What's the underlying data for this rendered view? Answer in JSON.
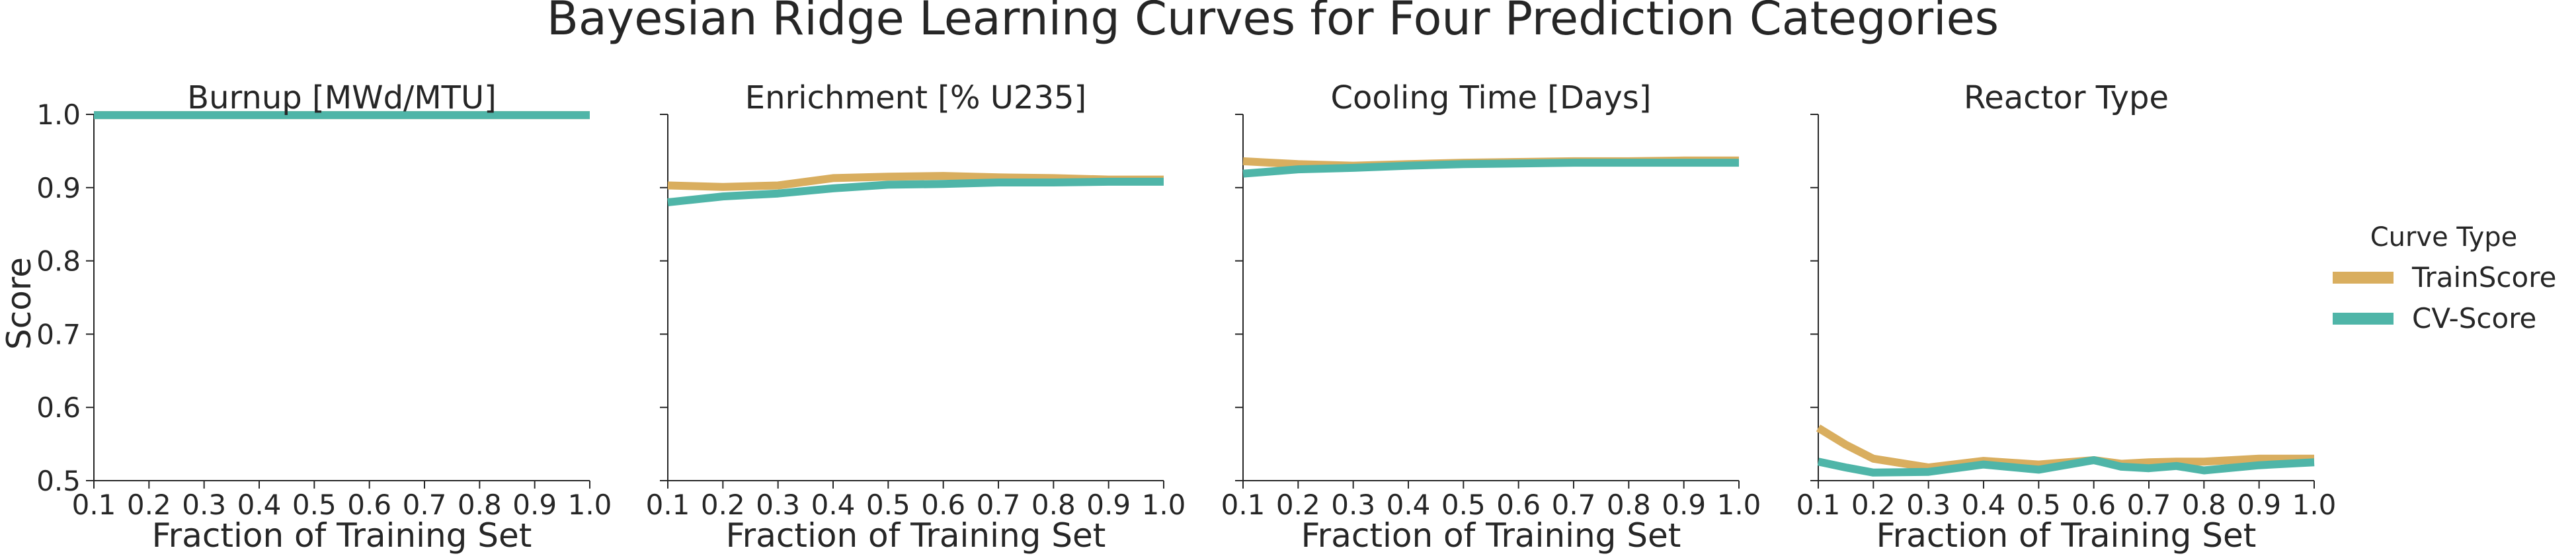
{
  "title": "Bayesian Ridge Learning Curves for Four Prediction Categories",
  "ylabel": "Score",
  "legend": {
    "title": "Curve Type",
    "placement": "right",
    "entries": [
      {
        "name": "TrainScore",
        "color": "#D9AE5F"
      },
      {
        "name": "CV-Score",
        "color": "#4FB5A8"
      }
    ]
  },
  "chart_data": [
    {
      "type": "line",
      "title": "Burnup [MWd/MTU]",
      "xlabel": "Fraction of Training Set",
      "ylabel": "Score",
      "xlim": [
        0.1,
        1.0
      ],
      "ylim": [
        0.5,
        1.0
      ],
      "xticks": [
        "0.1",
        "0.2",
        "0.3",
        "0.4",
        "0.5",
        "0.6",
        "0.7",
        "0.8",
        "0.9",
        "1.0"
      ],
      "yticks": [
        "0.5",
        "0.6",
        "0.7",
        "0.8",
        "0.9",
        "1.0"
      ],
      "x": [
        0.1,
        0.2,
        0.3,
        0.4,
        0.5,
        0.6,
        0.7,
        0.8,
        0.9,
        1.0
      ],
      "series": [
        {
          "name": "TrainScore",
          "values": [
            0.999,
            0.999,
            0.999,
            0.999,
            0.999,
            0.999,
            0.999,
            0.999,
            0.999,
            0.999
          ]
        },
        {
          "name": "CV-Score",
          "values": [
            0.999,
            0.999,
            0.999,
            0.999,
            0.999,
            0.999,
            0.999,
            0.999,
            0.999,
            0.999
          ]
        }
      ]
    },
    {
      "type": "line",
      "title": "Enrichment [% U235]",
      "xlabel": "Fraction of Training Set",
      "xlim": [
        0.1,
        1.0
      ],
      "ylim": [
        0.5,
        1.0
      ],
      "xticks": [
        "0.1",
        "0.2",
        "0.3",
        "0.4",
        "0.5",
        "0.6",
        "0.7",
        "0.8",
        "0.9",
        "1.0"
      ],
      "x": [
        0.1,
        0.2,
        0.3,
        0.4,
        0.5,
        0.6,
        0.7,
        0.8,
        0.9,
        1.0
      ],
      "series": [
        {
          "name": "TrainScore",
          "values": [
            0.903,
            0.901,
            0.903,
            0.913,
            0.915,
            0.916,
            0.914,
            0.913,
            0.911,
            0.911
          ]
        },
        {
          "name": "CV-Score",
          "values": [
            0.88,
            0.888,
            0.892,
            0.899,
            0.904,
            0.905,
            0.907,
            0.907,
            0.908,
            0.908
          ]
        }
      ]
    },
    {
      "type": "line",
      "title": "Cooling Time [Days]",
      "xlabel": "Fraction of Training Set",
      "xlim": [
        0.1,
        1.0
      ],
      "ylim": [
        0.5,
        1.0
      ],
      "xticks": [
        "0.1",
        "0.2",
        "0.3",
        "0.4",
        "0.5",
        "0.6",
        "0.7",
        "0.8",
        "0.9",
        "1.0"
      ],
      "x": [
        0.1,
        0.2,
        0.3,
        0.4,
        0.5,
        0.6,
        0.7,
        0.8,
        0.9,
        1.0
      ],
      "series": [
        {
          "name": "TrainScore",
          "values": [
            0.936,
            0.932,
            0.93,
            0.932,
            0.934,
            0.935,
            0.936,
            0.936,
            0.937,
            0.937
          ]
        },
        {
          "name": "CV-Score",
          "values": [
            0.919,
            0.925,
            0.927,
            0.93,
            0.932,
            0.933,
            0.934,
            0.934,
            0.934,
            0.934
          ]
        }
      ]
    },
    {
      "type": "line",
      "title": "Reactor Type",
      "xlabel": "Fraction of Training Set",
      "xlim": [
        0.1,
        1.0
      ],
      "ylim": [
        0.5,
        1.0
      ],
      "xticks": [
        "0.1",
        "0.2",
        "0.3",
        "0.4",
        "0.5",
        "0.6",
        "0.7",
        "0.8",
        "0.9",
        "1.0"
      ],
      "x": [
        0.1,
        0.15,
        0.2,
        0.3,
        0.4,
        0.5,
        0.6,
        0.65,
        0.7,
        0.75,
        0.8,
        0.9,
        1.0
      ],
      "series": [
        {
          "name": "TrainScore",
          "values": [
            0.572,
            0.549,
            0.53,
            0.518,
            0.527,
            0.522,
            0.528,
            0.523,
            0.525,
            0.526,
            0.526,
            0.53,
            0.53
          ]
        },
        {
          "name": "CV-Score",
          "values": [
            0.526,
            0.518,
            0.511,
            0.512,
            0.522,
            0.515,
            0.528,
            0.519,
            0.517,
            0.52,
            0.514,
            0.521,
            0.525
          ]
        }
      ]
    }
  ]
}
